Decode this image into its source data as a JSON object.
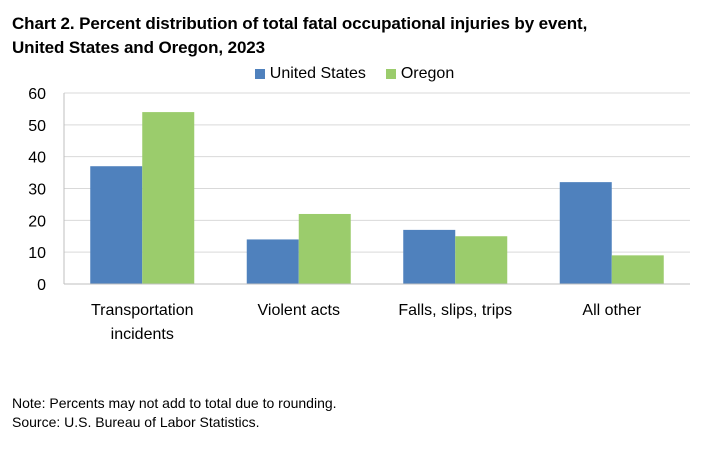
{
  "title_lines": [
    "Chart 2. Percent distribution of total fatal occupational injuries by event,",
    "United States and Oregon, 2023"
  ],
  "notes": {
    "note": "Note: Percents may not add to total due to rounding.",
    "source": "Source: U.S. Bureau of Labor Statistics."
  },
  "chart_data": {
    "type": "bar",
    "title": "Chart 2. Percent distribution of total fatal occupational injuries by event, United States and Oregon, 2023",
    "categories": [
      [
        "Transportation",
        "incidents"
      ],
      [
        "Violent acts"
      ],
      [
        "Falls, slips, trips"
      ],
      [
        "All other"
      ]
    ],
    "series": [
      {
        "name": "United States",
        "color": "#4f81bd",
        "values": [
          37,
          14,
          17,
          32
        ]
      },
      {
        "name": "Oregon",
        "color": "#9bcc6c",
        "values": [
          54,
          22,
          15,
          9
        ]
      }
    ],
    "ylim": [
      0,
      60
    ],
    "yticks": [
      0,
      10,
      20,
      30,
      40,
      50,
      60
    ],
    "grid": true,
    "legend_position": "top-center"
  }
}
